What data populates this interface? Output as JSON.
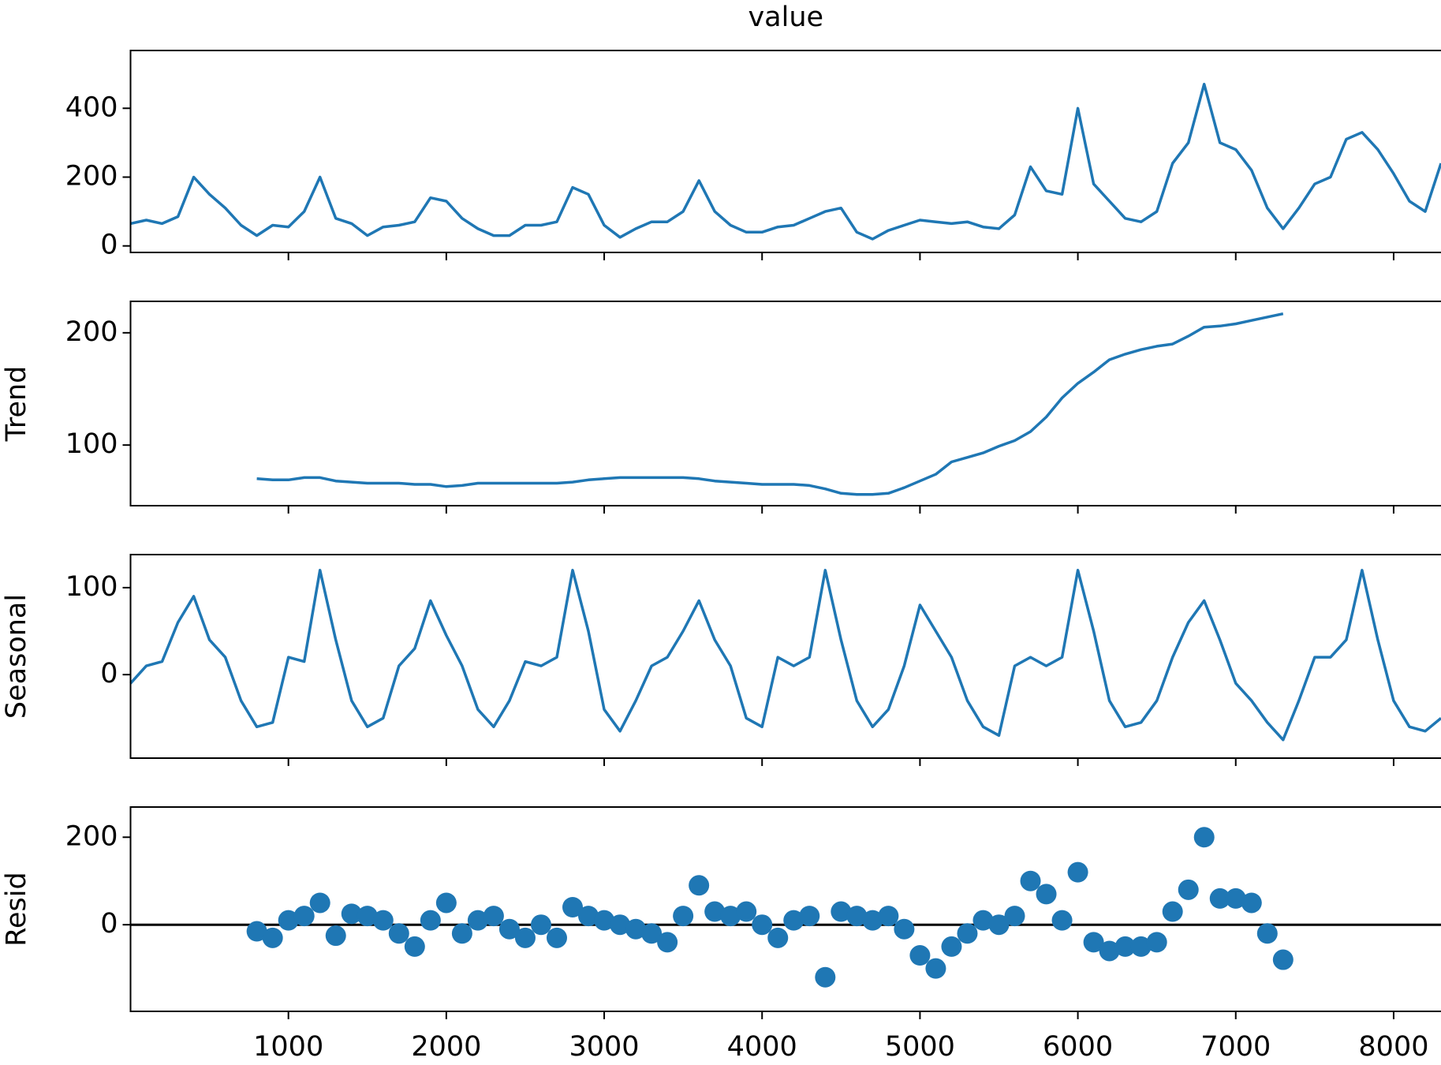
{
  "chart_data": [
    {
      "type": "line",
      "title": "value",
      "color": "#1f77b4",
      "x": [
        0,
        100,
        200,
        300,
        400,
        500,
        600,
        700,
        800,
        900,
        1000,
        1100,
        1200,
        1300,
        1400,
        1500,
        1600,
        1700,
        1800,
        1900,
        2000,
        2100,
        2200,
        2300,
        2400,
        2500,
        2600,
        2700,
        2800,
        2900,
        3000,
        3100,
        3200,
        3300,
        3400,
        3500,
        3600,
        3700,
        3800,
        3900,
        4000,
        4100,
        4200,
        4300,
        4400,
        4500,
        4600,
        4700,
        4800,
        4900,
        5000,
        5100,
        5200,
        5300,
        5400,
        5500,
        5600,
        5700,
        5800,
        5900,
        6000,
        6100,
        6200,
        6300,
        6400,
        6500,
        6600,
        6700,
        6800,
        6900,
        7000,
        7100,
        7200,
        7300,
        7400,
        7500,
        7600,
        7700,
        7800,
        7900,
        8000,
        8100,
        8200,
        8300
      ],
      "values": [
        65,
        75,
        65,
        85,
        200,
        150,
        110,
        60,
        30,
        60,
        55,
        100,
        200,
        80,
        65,
        30,
        55,
        60,
        70,
        140,
        130,
        80,
        50,
        30,
        30,
        60,
        60,
        70,
        170,
        150,
        60,
        25,
        50,
        70,
        70,
        100,
        190,
        100,
        60,
        40,
        40,
        55,
        60,
        80,
        100,
        110,
        40,
        20,
        45,
        60,
        75,
        70,
        65,
        70,
        55,
        50,
        90,
        230,
        160,
        150,
        400,
        180,
        130,
        80,
        70,
        100,
        240,
        300,
        470,
        300,
        280,
        220,
        110,
        50,
        110,
        180,
        200,
        310,
        330,
        280,
        210,
        130,
        100,
        240
      ],
      "xlim": [
        0,
        8300
      ],
      "ylim": [
        -19,
        568
      ],
      "yticks": [
        0,
        200,
        400
      ],
      "xticks": [
        1000,
        2000,
        3000,
        4000,
        5000,
        6000,
        7000,
        8000
      ]
    },
    {
      "type": "line",
      "ylabel": "Trend",
      "color": "#1f77b4",
      "x": [
        0,
        100,
        200,
        300,
        400,
        500,
        600,
        700,
        800,
        900,
        1000,
        1100,
        1200,
        1300,
        1400,
        1500,
        1600,
        1700,
        1800,
        1900,
        2000,
        2100,
        2200,
        2300,
        2400,
        2500,
        2600,
        2700,
        2800,
        2900,
        3000,
        3100,
        3200,
        3300,
        3400,
        3500,
        3600,
        3700,
        3800,
        3900,
        4000,
        4100,
        4200,
        4300,
        4400,
        4500,
        4600,
        4700,
        4800,
        4900,
        5000,
        5100,
        5200,
        5300,
        5400,
        5500,
        5600,
        5700,
        5800,
        5900,
        6000,
        6100,
        6200,
        6300,
        6400,
        6500,
        6600,
        6700,
        6800,
        6900,
        7000,
        7100,
        7200,
        7300,
        7400,
        7500,
        7600,
        7700,
        7800,
        7900,
        8000,
        8100,
        8200,
        8300
      ],
      "values": [
        null,
        null,
        null,
        null,
        null,
        null,
        null,
        null,
        70,
        69,
        69,
        71,
        71,
        68,
        67,
        66,
        66,
        66,
        65,
        65,
        63,
        64,
        66,
        66,
        66,
        66,
        66,
        66,
        67,
        69,
        70,
        71,
        71,
        71,
        71,
        71,
        70,
        68,
        67,
        66,
        65,
        65,
        65,
        64,
        61,
        57,
        56,
        56,
        57,
        62,
        68,
        74,
        85,
        89,
        93,
        99,
        104,
        112,
        125,
        142,
        155,
        165,
        176,
        181,
        185,
        188,
        190,
        197,
        205,
        206,
        208,
        211,
        214,
        217,
        null,
        null,
        null,
        null,
        null,
        null,
        null,
        null,
        null,
        null
      ],
      "xlim": [
        0,
        8300
      ],
      "ylim": [
        46,
        228
      ],
      "yticks": [
        100,
        200
      ],
      "xticks": [
        1000,
        2000,
        3000,
        4000,
        5000,
        6000,
        7000,
        8000
      ]
    },
    {
      "type": "line",
      "ylabel": "Seasonal",
      "color": "#1f77b4",
      "x": [
        0,
        100,
        200,
        300,
        400,
        500,
        600,
        700,
        800,
        900,
        1000,
        1100,
        1200,
        1300,
        1400,
        1500,
        1600,
        1700,
        1800,
        1900,
        2000,
        2100,
        2200,
        2300,
        2400,
        2500,
        2600,
        2700,
        2800,
        2900,
        3000,
        3100,
        3200,
        3300,
        3400,
        3500,
        3600,
        3700,
        3800,
        3900,
        4000,
        4100,
        4200,
        4300,
        4400,
        4500,
        4600,
        4700,
        4800,
        4900,
        5000,
        5100,
        5200,
        5300,
        5400,
        5500,
        5600,
        5700,
        5800,
        5900,
        6000,
        6100,
        6200,
        6300,
        6400,
        6500,
        6600,
        6700,
        6800,
        6900,
        7000,
        7100,
        7200,
        7300,
        7400,
        7500,
        7600,
        7700,
        7800,
        7900,
        8000,
        8100,
        8200,
        8300
      ],
      "values": [
        -10,
        10,
        15,
        60,
        90,
        40,
        20,
        -30,
        -60,
        -55,
        20,
        15,
        120,
        40,
        -30,
        -60,
        -50,
        10,
        30,
        85,
        45,
        10,
        -40,
        -60,
        -30,
        15,
        10,
        20,
        120,
        50,
        -40,
        -65,
        -30,
        10,
        20,
        50,
        85,
        40,
        10,
        -50,
        -60,
        20,
        10,
        20,
        120,
        40,
        -30,
        -60,
        -40,
        10,
        80,
        50,
        20,
        -30,
        -60,
        -70,
        10,
        20,
        10,
        20,
        120,
        50,
        -30,
        -60,
        -55,
        -30,
        20,
        60,
        85,
        40,
        -10,
        -30,
        -55,
        -75,
        -30,
        20,
        20,
        40,
        120,
        40,
        -30,
        -60,
        -65,
        -50
      ],
      "xlim": [
        0,
        8300
      ],
      "ylim": [
        -96,
        138
      ],
      "yticks": [
        0,
        100
      ],
      "xticks": [
        1000,
        2000,
        3000,
        4000,
        5000,
        6000,
        7000,
        8000
      ]
    },
    {
      "type": "scatter",
      "ylabel": "Resid",
      "color": "#1f77b4",
      "zero_line": true,
      "x": [
        0,
        100,
        200,
        300,
        400,
        500,
        600,
        700,
        800,
        900,
        1000,
        1100,
        1200,
        1300,
        1400,
        1500,
        1600,
        1700,
        1800,
        1900,
        2000,
        2100,
        2200,
        2300,
        2400,
        2500,
        2600,
        2700,
        2800,
        2900,
        3000,
        3100,
        3200,
        3300,
        3400,
        3500,
        3600,
        3700,
        3800,
        3900,
        4000,
        4100,
        4200,
        4300,
        4400,
        4500,
        4600,
        4700,
        4800,
        4900,
        5000,
        5100,
        5200,
        5300,
        5400,
        5500,
        5600,
        5700,
        5800,
        5900,
        6000,
        6100,
        6200,
        6300,
        6400,
        6500,
        6600,
        6700,
        6800,
        6900,
        7000,
        7100,
        7200,
        7300,
        7400,
        7500,
        7600,
        7700,
        7800,
        7900,
        8000,
        8100,
        8200,
        8300
      ],
      "values": [
        null,
        null,
        null,
        null,
        null,
        null,
        null,
        null,
        -15,
        -30,
        10,
        20,
        50,
        -25,
        25,
        20,
        10,
        -20,
        -50,
        10,
        50,
        -20,
        10,
        20,
        -10,
        -30,
        0,
        -30,
        40,
        20,
        10,
        0,
        -10,
        -20,
        -40,
        20,
        90,
        30,
        20,
        30,
        0,
        -30,
        10,
        20,
        -120,
        30,
        20,
        10,
        20,
        -10,
        -70,
        -100,
        -50,
        -20,
        10,
        0,
        20,
        100,
        70,
        10,
        120,
        -40,
        -60,
        -50,
        -50,
        -40,
        30,
        80,
        200,
        60,
        60,
        50,
        -20,
        -80,
        null,
        null,
        null,
        null,
        null,
        null,
        null,
        null,
        null,
        null
      ],
      "xlim": [
        0,
        8300
      ],
      "ylim": [
        -198,
        269
      ],
      "yticks": [
        0,
        200
      ],
      "xticks": [
        1000,
        2000,
        3000,
        4000,
        5000,
        6000,
        7000,
        8000
      ]
    }
  ]
}
